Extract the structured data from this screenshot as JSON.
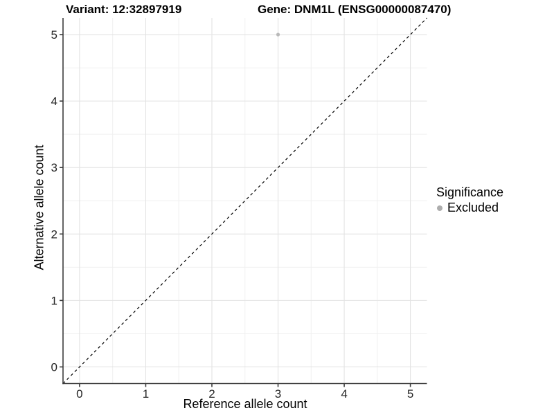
{
  "titles": {
    "variant": "Variant: 12:32897919",
    "gene": "Gene: DNM1L (ENSG00000087470)"
  },
  "chart_data": {
    "type": "scatter",
    "title_left": "Variant: 12:32897919",
    "title_right": "Gene: DNM1L (ENSG00000087470)",
    "xlabel": "Reference allele count",
    "ylabel": "Alternative allele count",
    "xlim": [
      -0.25,
      5.25
    ],
    "ylim": [
      -0.25,
      5.25
    ],
    "xticks": [
      0,
      1,
      2,
      3,
      4,
      5
    ],
    "yticks": [
      0,
      1,
      2,
      3,
      4,
      5
    ],
    "xtick_labels": [
      "0",
      "1",
      "2",
      "3",
      "4",
      "5"
    ],
    "ytick_labels": [
      "0",
      "1",
      "2",
      "3",
      "4",
      "5"
    ],
    "x_minor": [
      0.5,
      1.5,
      2.5,
      3.5,
      4.5
    ],
    "y_minor": [
      0.5,
      1.5,
      2.5,
      3.5,
      4.5
    ],
    "grid": "major+minor",
    "series": [
      {
        "name": "Excluded",
        "color": "#b9b9b9",
        "points": [
          {
            "x": 3,
            "y": 5
          }
        ]
      }
    ],
    "reference_line": {
      "type": "identity",
      "style": "dashed",
      "color": "#000000",
      "from": [
        -0.25,
        -0.25
      ],
      "to": [
        5.25,
        5.25
      ]
    },
    "legend": {
      "title": "Significance",
      "position": "right",
      "items": [
        {
          "label": "Excluded",
          "color": "#adadad"
        }
      ]
    }
  },
  "colors": {
    "background": "#ffffff",
    "grid_major": "#e3e3e3",
    "grid_minor": "#f0f0f0",
    "axis_line": "#3c3c3c",
    "tick_text": "#262626",
    "title_text": "#000000"
  }
}
